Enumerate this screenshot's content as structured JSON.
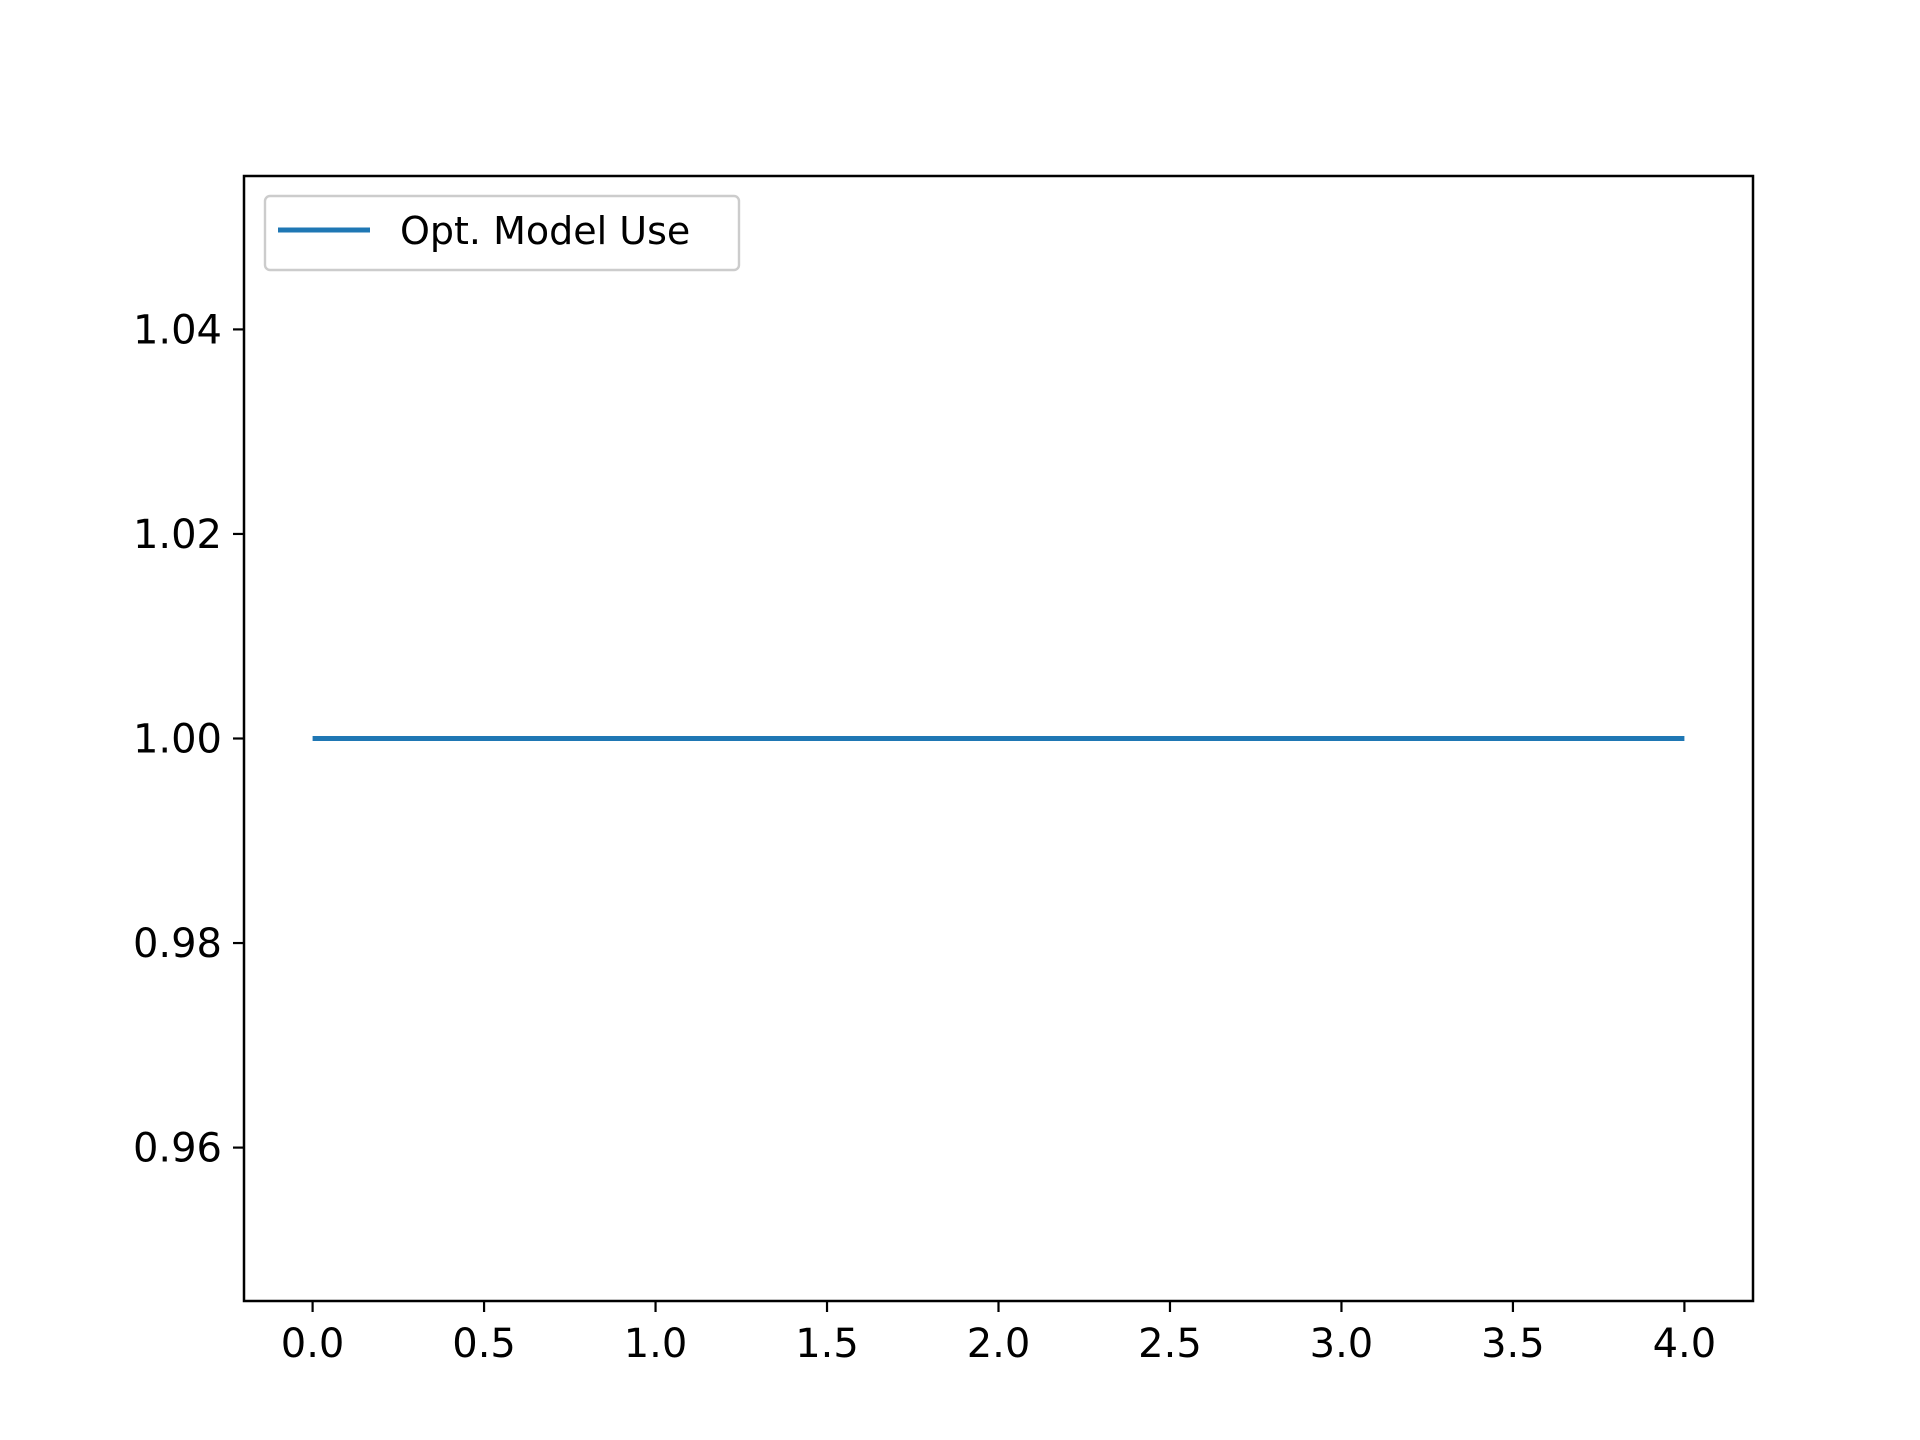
{
  "chart_data": {
    "type": "line",
    "title": "",
    "xlabel": "",
    "ylabel": "",
    "xlim": [
      -0.2,
      4.2
    ],
    "ylim": [
      0.945,
      1.055
    ],
    "x_ticks": [
      0.0,
      0.5,
      1.0,
      1.5,
      2.0,
      2.5,
      3.0,
      3.5,
      4.0
    ],
    "x_tick_labels": [
      "0.0",
      "0.5",
      "1.0",
      "1.5",
      "2.0",
      "2.5",
      "3.0",
      "3.5",
      "4.0"
    ],
    "y_ticks": [
      0.96,
      0.98,
      1.0,
      1.02,
      1.04
    ],
    "y_tick_labels": [
      "0.96",
      "0.98",
      "1.00",
      "1.02",
      "1.04"
    ],
    "grid": false,
    "legend_position": "upper-left",
    "series": [
      {
        "name": "Opt. Model Use",
        "color": "#1f77b4",
        "x": [
          0,
          1,
          2,
          3,
          4
        ],
        "y": [
          1.0,
          1.0,
          1.0,
          1.0,
          1.0
        ]
      }
    ]
  }
}
